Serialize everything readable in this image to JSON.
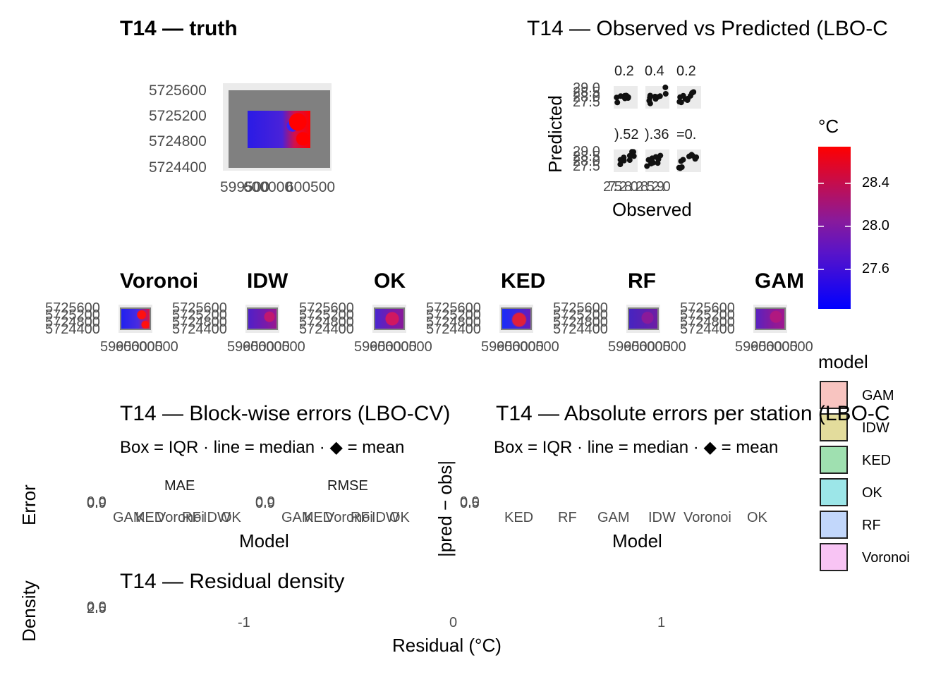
{
  "truth": {
    "title": "T14 — truth",
    "y_ticks": [
      "5725600",
      "5725200",
      "5724800",
      "5724400"
    ],
    "x_ticks": [
      "599500",
      "600000",
      "600500"
    ]
  },
  "obs_pred": {
    "title": "T14 — Observed vs Predicted (LBO-C",
    "ylabel": "Predicted",
    "xlabel": "Observed",
    "strip_top": [
      "0.2",
      "0.4",
      "0.2"
    ],
    "strip_bottom": [
      ").52",
      ").36",
      "=0."
    ],
    "y_ticks": [
      "29.0",
      "28.5",
      "28.0",
      "27.5"
    ],
    "x_ticks_text": "27.528.028.529.0"
  },
  "models": {
    "names": [
      "Voronoi",
      "IDW",
      "OK",
      "KED",
      "RF",
      "GAM"
    ],
    "y_ticks": [
      "5725600",
      "5725200",
      "5724800",
      "5724400"
    ],
    "x_ticks": [
      "599500",
      "600000",
      "600500"
    ]
  },
  "colorbar": {
    "title": "°C",
    "ticks": [
      "28.4",
      "28.0",
      "27.6"
    ],
    "low_color": "#0000ff",
    "high_color": "#ff0000"
  },
  "legend": {
    "title": "model",
    "items": [
      {
        "label": "GAM",
        "color": "#f8c4c0"
      },
      {
        "label": "IDW",
        "color": "#e3dc9c"
      },
      {
        "label": "KED",
        "color": "#9fe0b0"
      },
      {
        "label": "OK",
        "color": "#9ce6e8"
      },
      {
        "label": "RF",
        "color": "#c2d7fb"
      },
      {
        "label": "Voronoi",
        "color": "#f8c4f4"
      }
    ]
  },
  "blockwise": {
    "title": "T14 — Block-wise errors (LBO-CV)",
    "subtitle": "Box = IQR · line = median · ◆ = mean",
    "ylabel": "Error",
    "xlabel": "Model",
    "facets": [
      "MAE",
      "RMSE"
    ],
    "y_ticks": [
      "0.0",
      "0.9"
    ],
    "x_ticks": [
      "GAM",
      "KED",
      "Voronoi",
      "RF",
      "IDW",
      "OK"
    ]
  },
  "abs_errors": {
    "title": "T14 — Absolute errors per station (LBO-C",
    "subtitle": "Box = IQR · line = median · ◆ = mean",
    "ylabel": "|pred − obs|",
    "xlabel": "Model",
    "y_ticks": [
      "0.0",
      "0.5"
    ],
    "x_ticks": [
      "KED",
      "RF",
      "GAM",
      "IDW",
      "Voronoi",
      "OK"
    ]
  },
  "density": {
    "title": "T14 — Residual density",
    "ylabel": "Density",
    "xlabel": "Residual (°C)",
    "y_ticks": [
      "0.0",
      "2.5"
    ],
    "x_ticks": [
      "-1",
      "0",
      "1"
    ]
  }
}
